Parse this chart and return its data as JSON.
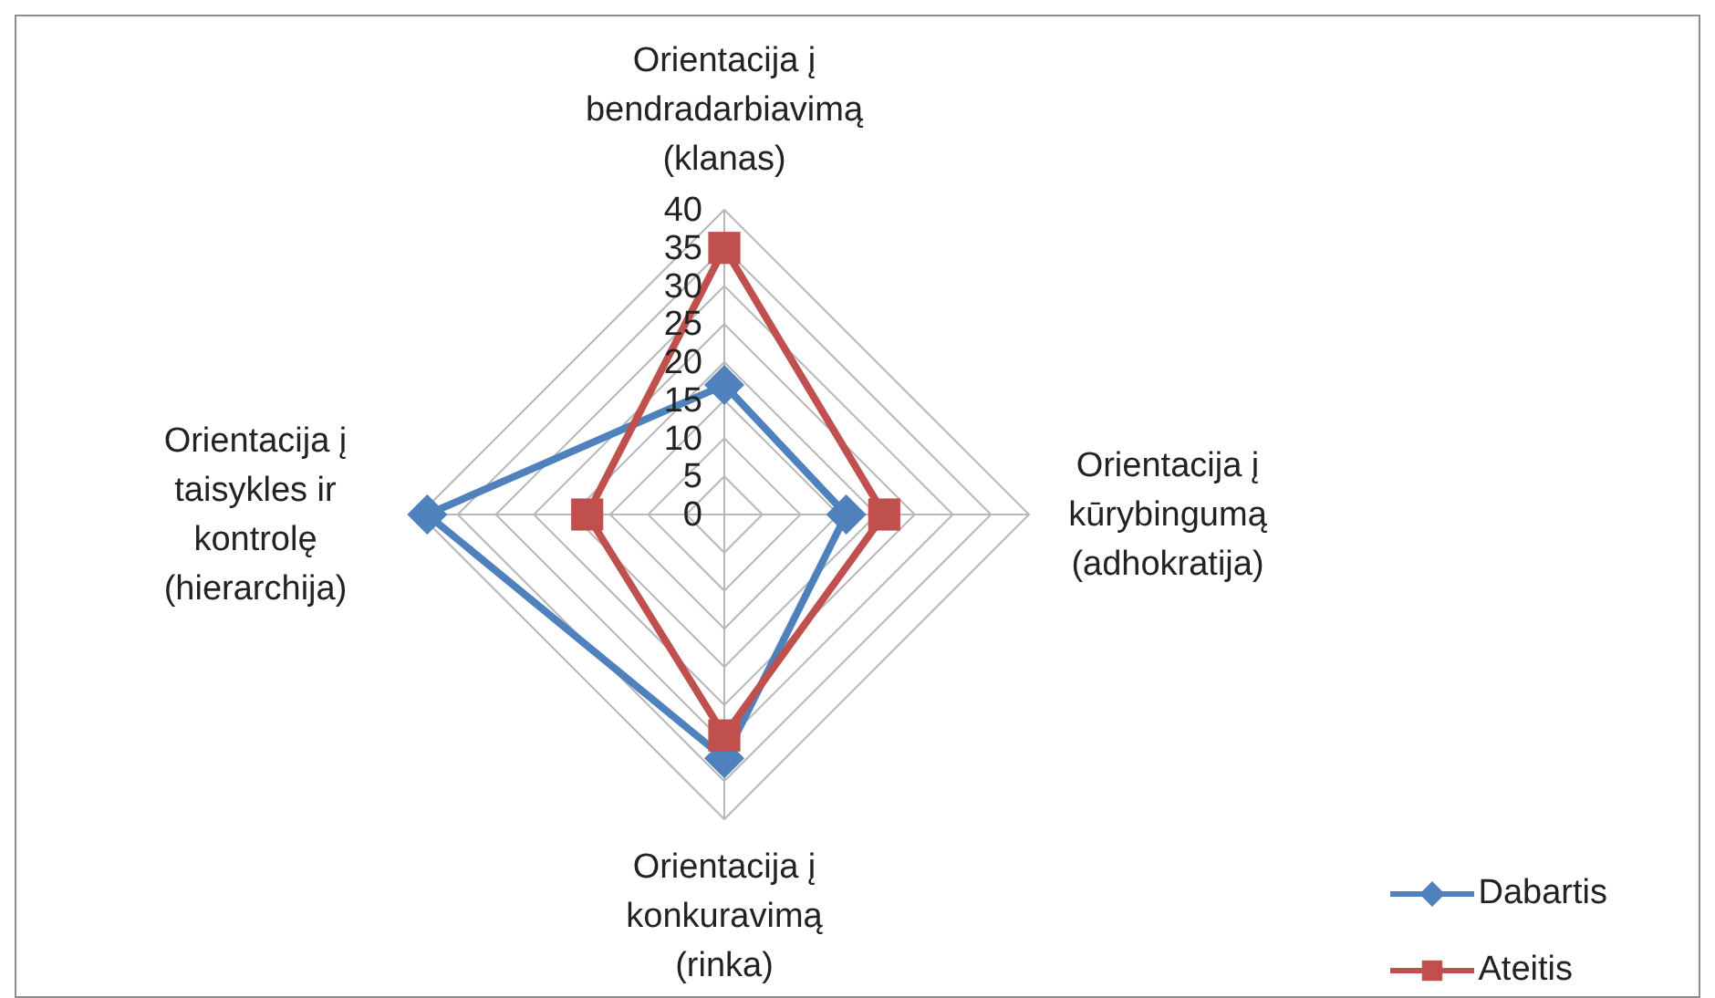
{
  "chart_data": {
    "type": "radar",
    "categories": [
      "Orientacija į bendradarbiavimą (klanas)",
      "Orientacija į kūrybingumą (adhokratija)",
      "Orientacija į konkuravimą (rinka)",
      "Orientacija į taisykles ir kontrolę (hierarchija)"
    ],
    "series": [
      {
        "name": "Dabartis",
        "color": "#4f81bd",
        "marker": "diamond",
        "values": [
          17,
          16,
          32,
          39
        ]
      },
      {
        "name": "Ateitis",
        "color": "#c0504d",
        "marker": "square",
        "values": [
          35,
          21,
          29,
          18
        ]
      }
    ],
    "ylim": [
      0,
      40
    ],
    "yticks": [
      0,
      5,
      10,
      15,
      20,
      25,
      30,
      35,
      40
    ],
    "grid": true,
    "legend": "bottom right"
  }
}
